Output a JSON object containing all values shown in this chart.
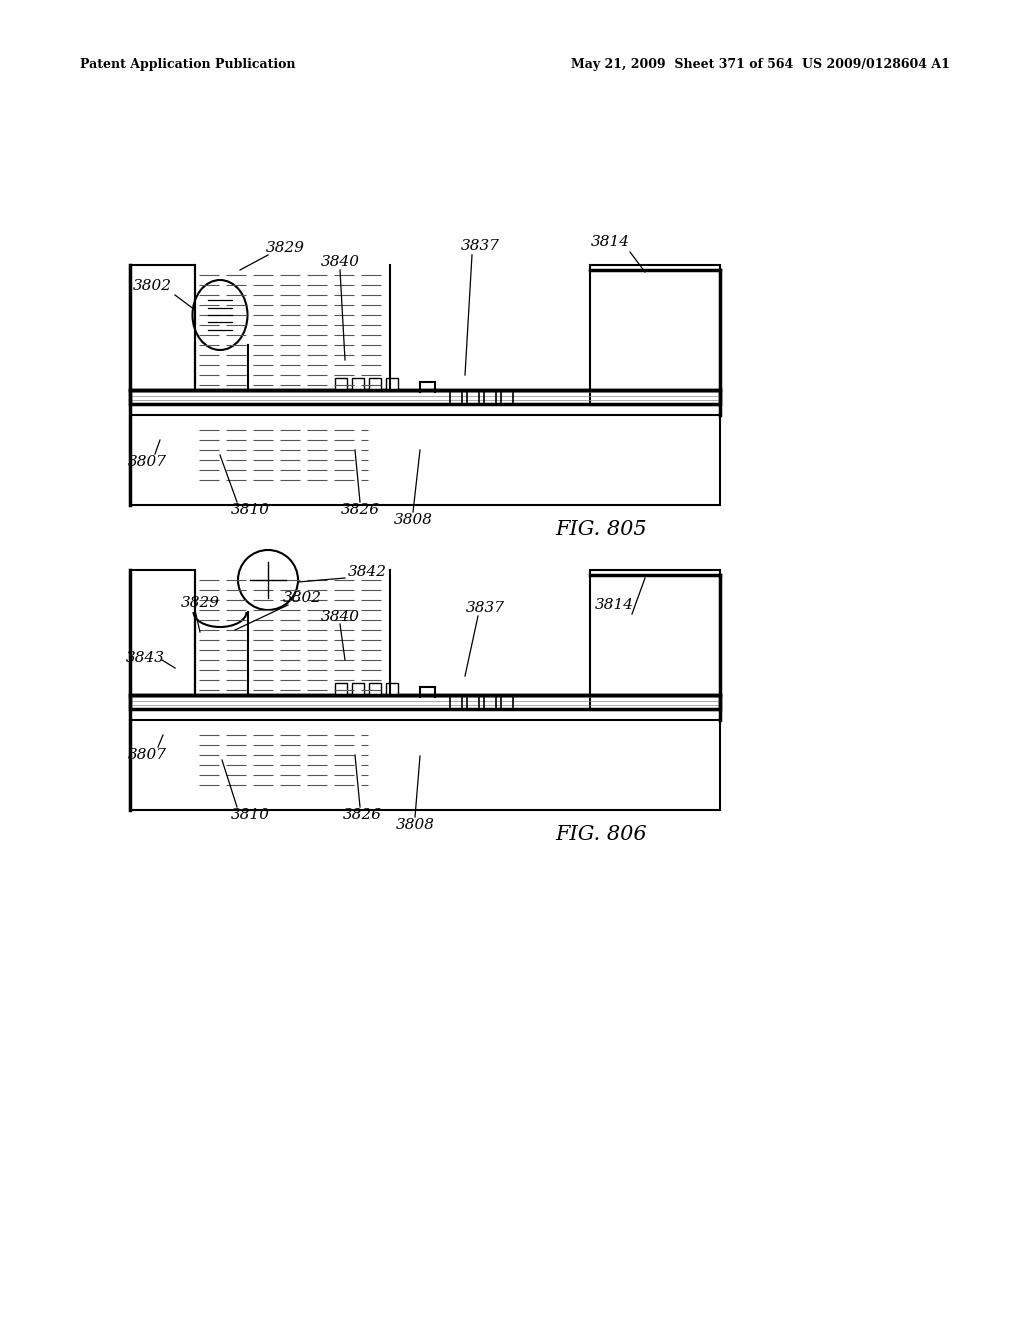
{
  "bg_color": "#ffffff",
  "header_left": "Patent Application Publication",
  "header_right": "May 21, 2009  Sheet 371 of 564  US 2009/0128604 A1",
  "fig1_label": "FIG. 805",
  "fig2_label": "FIG. 806",
  "line_color": "#000000"
}
